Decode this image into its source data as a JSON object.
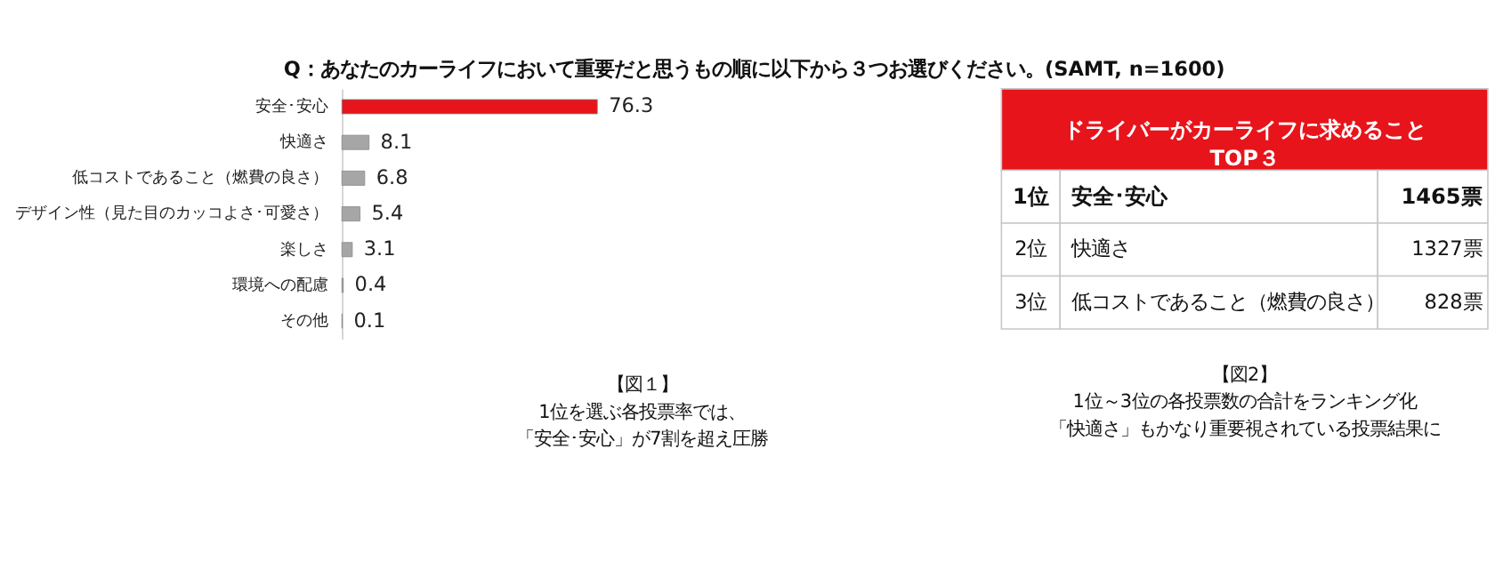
{
  "chart_data": [
    {
      "type": "bar",
      "orientation": "horizontal",
      "title": "Q：あなたのカーライフにおいて重要だと思うもの順に以下から３つお選びください。(SAMT, n=1600)",
      "categories": [
        "安全･安心",
        "快適さ",
        "低コストであること（燃費の良さ）",
        "デザイン性（見た目のカッコよさ･可愛さ）",
        "楽しさ",
        "環境への配慮",
        "その他"
      ],
      "values": [
        76.3,
        8.1,
        6.8,
        5.4,
        3.1,
        0.4,
        0.1
      ],
      "colors": [
        "#e8141b",
        "#a6a6a6",
        "#a6a6a6",
        "#a6a6a6",
        "#a6a6a6",
        "#a6a6a6",
        "#a6a6a6"
      ],
      "data_labels": true,
      "annotations": [
        "【図１】",
        "1位を選ぶ各投票率では、",
        "「安全･安心」が7割を超え圧勝"
      ]
    },
    {
      "type": "other",
      "title": "ドライバーがカーライフに求めること\nTOP３",
      "categories": [
        "安全･安心",
        "快適さ",
        "低コストであること（燃費の良さ）"
      ],
      "values": [
        1465,
        1327,
        828
      ],
      "value_labels": [
        "1465票",
        "1327票",
        "828票"
      ],
      "annotations": [
        "1位",
        "2位",
        "3位",
        "【図2】",
        "1位～3位の各投票数の合計をランキング化",
        "「快適さ」もかなり重要視されている投票結果に"
      ]
    }
  ]
}
